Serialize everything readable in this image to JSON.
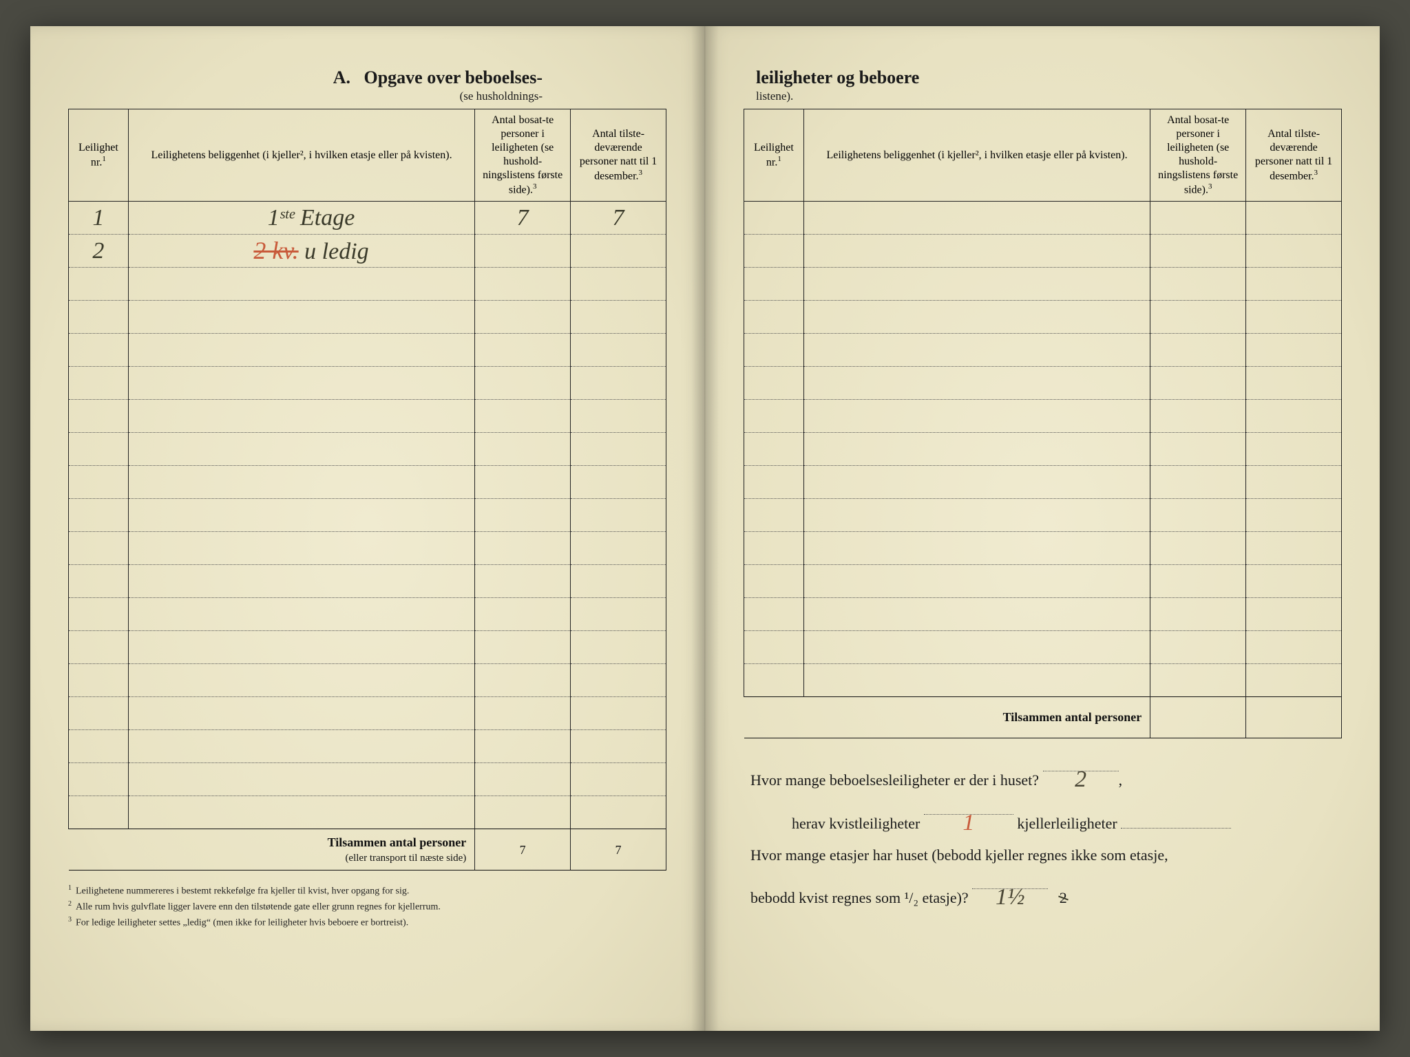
{
  "page_bg": "#ede8cc",
  "ink_color": "#1a1a1a",
  "handwriting_color": "#4a4635",
  "red_ink_color": "#c85a3a",
  "left": {
    "title_prefix": "A.",
    "title": "Opgave over beboelses-",
    "subtitle": "(se husholdnings-",
    "headers": {
      "nr": "Leilighet nr.",
      "nr_sup": "1",
      "loc": "Leilighetens beliggenhet (i kjeller², i hvilken etasje eller på kvisten).",
      "c1": "Antal bosat-te personer i leiligheten (se hushold-ningslistens første side).",
      "c1_sup": "3",
      "c2": "Antal tilste-deværende personer natt til 1 desember.",
      "c2_sup": "3"
    },
    "rows": [
      {
        "nr": "1",
        "loc": "1ˢᵗᵉ Etage",
        "c1": "7",
        "c2": "7"
      },
      {
        "nr": "2",
        "loc_red": "2 kv.",
        "loc_tail": " u ledig",
        "c1": "",
        "c2": ""
      }
    ],
    "blank_row_count": 17,
    "total_label": "Tilsammen antal personer",
    "total_sub": "(eller transport til næste side)",
    "total_c1": "7",
    "total_c2": "7",
    "footnotes": [
      "Leilighetene nummereres i bestemt rekkefølge fra kjeller til kvist, hver opgang for sig.",
      "Alle rum hvis gulvflate ligger lavere enn den tilstøtende gate eller grunn regnes for kjellerrum.",
      "For ledige leiligheter settes „ledig“ (men ikke for leiligheter hvis beboere er bortreist)."
    ]
  },
  "right": {
    "title": "leiligheter og beboere",
    "subtitle": "listene).",
    "headers": {
      "nr": "Leilighet nr.",
      "nr_sup": "1",
      "loc": "Leilighetens beliggenhet (i kjeller², i hvilken etasje eller på kvisten).",
      "c1": "Antal bosat-te personer i leiligheten (se hushold-ningslistens første side).",
      "c1_sup": "3",
      "c2": "Antal tilste-deværende personer natt til 1 desember.",
      "c2_sup": "3"
    },
    "blank_row_count": 15,
    "total_label": "Tilsammen antal personer",
    "q1_a": "Hvor mange beboelsesleiligheter er der i huset?",
    "q1_val": "2",
    "q2_a": "herav kvistleiligheter",
    "q2_val": "1",
    "q2_b": "kjellerleiligheter",
    "q2_val2": "",
    "q3_a": "Hvor mange etasjer har huset (bebodd kjeller regnes ikke som etasje,",
    "q3_b": "bebodd kvist regnes som ¹/₂ etasje)?",
    "q3_val": "1½",
    "q3_struck": "2"
  }
}
